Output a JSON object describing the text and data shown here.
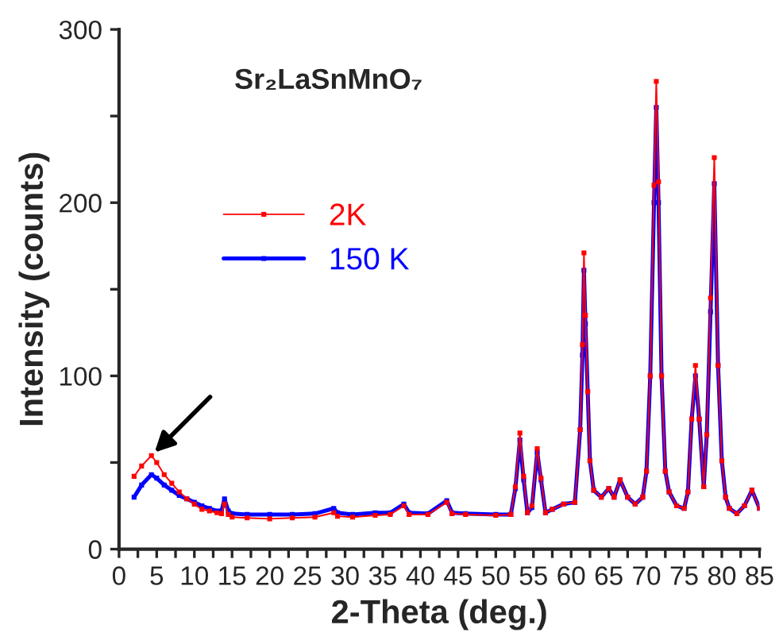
{
  "chart_data": {
    "type": "line",
    "title": "Sr₂LaSnMnO₇",
    "xlabel": "2-Theta (deg.)",
    "ylabel": "Intensity (counts)",
    "x": [
      2,
      3,
      4.3,
      5,
      6,
      7,
      8,
      9,
      10,
      11,
      12,
      13,
      13.6,
      14,
      14.5,
      15,
      17,
      20,
      23,
      26,
      28.5,
      29,
      31,
      34,
      36,
      37.8,
      38.5,
      41,
      43.5,
      44.2,
      46,
      50,
      52,
      52.6,
      53.2,
      53.7,
      54.2,
      54.8,
      55.5,
      56,
      56.6,
      57.5,
      59,
      60.5,
      61.2,
      61.5,
      61.7,
      61.9,
      62.2,
      62.5,
      63,
      64,
      65,
      65.7,
      66.5,
      67.5,
      68.5,
      69.5,
      70,
      70.5,
      71,
      71.3,
      71.6,
      72,
      72.5,
      73,
      74,
      75,
      75.5,
      76,
      76.5,
      77,
      77.6,
      78,
      78.5,
      79,
      79.5,
      80,
      80.5,
      81,
      82,
      83,
      84,
      85
    ],
    "series": [
      {
        "name": "2K",
        "color": "#ff0000",
        "values": [
          42,
          48,
          54,
          50,
          43,
          38,
          33,
          29,
          26,
          23,
          22,
          21,
          20.5,
          26,
          20,
          18.5,
          18,
          17.5,
          18,
          18.5,
          21,
          19,
          18.5,
          19.5,
          20,
          25,
          20,
          20,
          27,
          20.5,
          20,
          19.5,
          20,
          36,
          67,
          42,
          21,
          25,
          58,
          41,
          21,
          23,
          26,
          27,
          69,
          118,
          171,
          135,
          91,
          51,
          34,
          30,
          35,
          30,
          40,
          30,
          26,
          30,
          45,
          100,
          210,
          270,
          212,
          100,
          45,
          33,
          25,
          23.5,
          33,
          75,
          106,
          75,
          36,
          66,
          145,
          226,
          106,
          51,
          30,
          23.5,
          20.5,
          25,
          34,
          23.5
        ]
      },
      {
        "name": "150 K",
        "color": "#0000ff",
        "values": [
          30,
          37,
          43,
          41,
          37,
          34,
          31,
          29,
          27,
          25,
          23.5,
          22,
          22,
          29,
          22,
          20.5,
          20,
          20,
          20,
          20.5,
          23.5,
          21,
          20,
          21,
          21,
          26,
          21,
          20.5,
          28,
          21,
          20.5,
          20,
          20,
          35,
          63,
          40,
          21,
          24,
          56,
          40,
          21,
          23,
          26,
          27,
          69,
          112,
          161,
          130,
          91,
          51,
          34,
          30,
          35,
          30,
          40,
          30,
          26,
          30,
          45,
          100,
          200,
          255,
          200,
          100,
          45,
          33,
          25,
          23.5,
          33,
          75,
          100,
          75,
          36,
          66,
          137,
          211,
          106,
          51,
          30,
          23.5,
          20.5,
          25,
          34,
          23.5
        ]
      }
    ],
    "xlim": [
      0,
      85
    ],
    "xticks": [
      0,
      {
        "value": 2.5,
        "label": null
      },
      5,
      {
        "value": 7.5,
        "label": null
      },
      10,
      {
        "value": 12.5,
        "label": null
      },
      15,
      {
        "value": 17.5,
        "label": null
      },
      20,
      {
        "value": 22.5,
        "label": null
      },
      25,
      {
        "value": 27.5,
        "label": null
      },
      30,
      {
        "value": 32.5,
        "label": null
      },
      35,
      {
        "value": 37.5,
        "label": null
      },
      40,
      {
        "value": 42.5,
        "label": null
      },
      45,
      {
        "value": 47.5,
        "label": null
      },
      50,
      {
        "value": 52.5,
        "label": null
      },
      55,
      {
        "value": 57.5,
        "label": null
      },
      60,
      {
        "value": 62.5,
        "label": null
      },
      65,
      {
        "value": 67.5,
        "label": null
      },
      70,
      {
        "value": 72.5,
        "label": null
      },
      75,
      {
        "value": 77.5,
        "label": null
      },
      80,
      {
        "value": 82.5,
        "label": null
      },
      85
    ],
    "ylim": [
      0,
      300
    ],
    "yticks": [
      0,
      {
        "value": 50,
        "label": null
      },
      100,
      {
        "value": 150,
        "label": null
      },
      200,
      {
        "value": 250,
        "label": null
      },
      300
    ],
    "marker": "square",
    "line_style": "solid",
    "grid": false,
    "legend": "top left"
  }
}
